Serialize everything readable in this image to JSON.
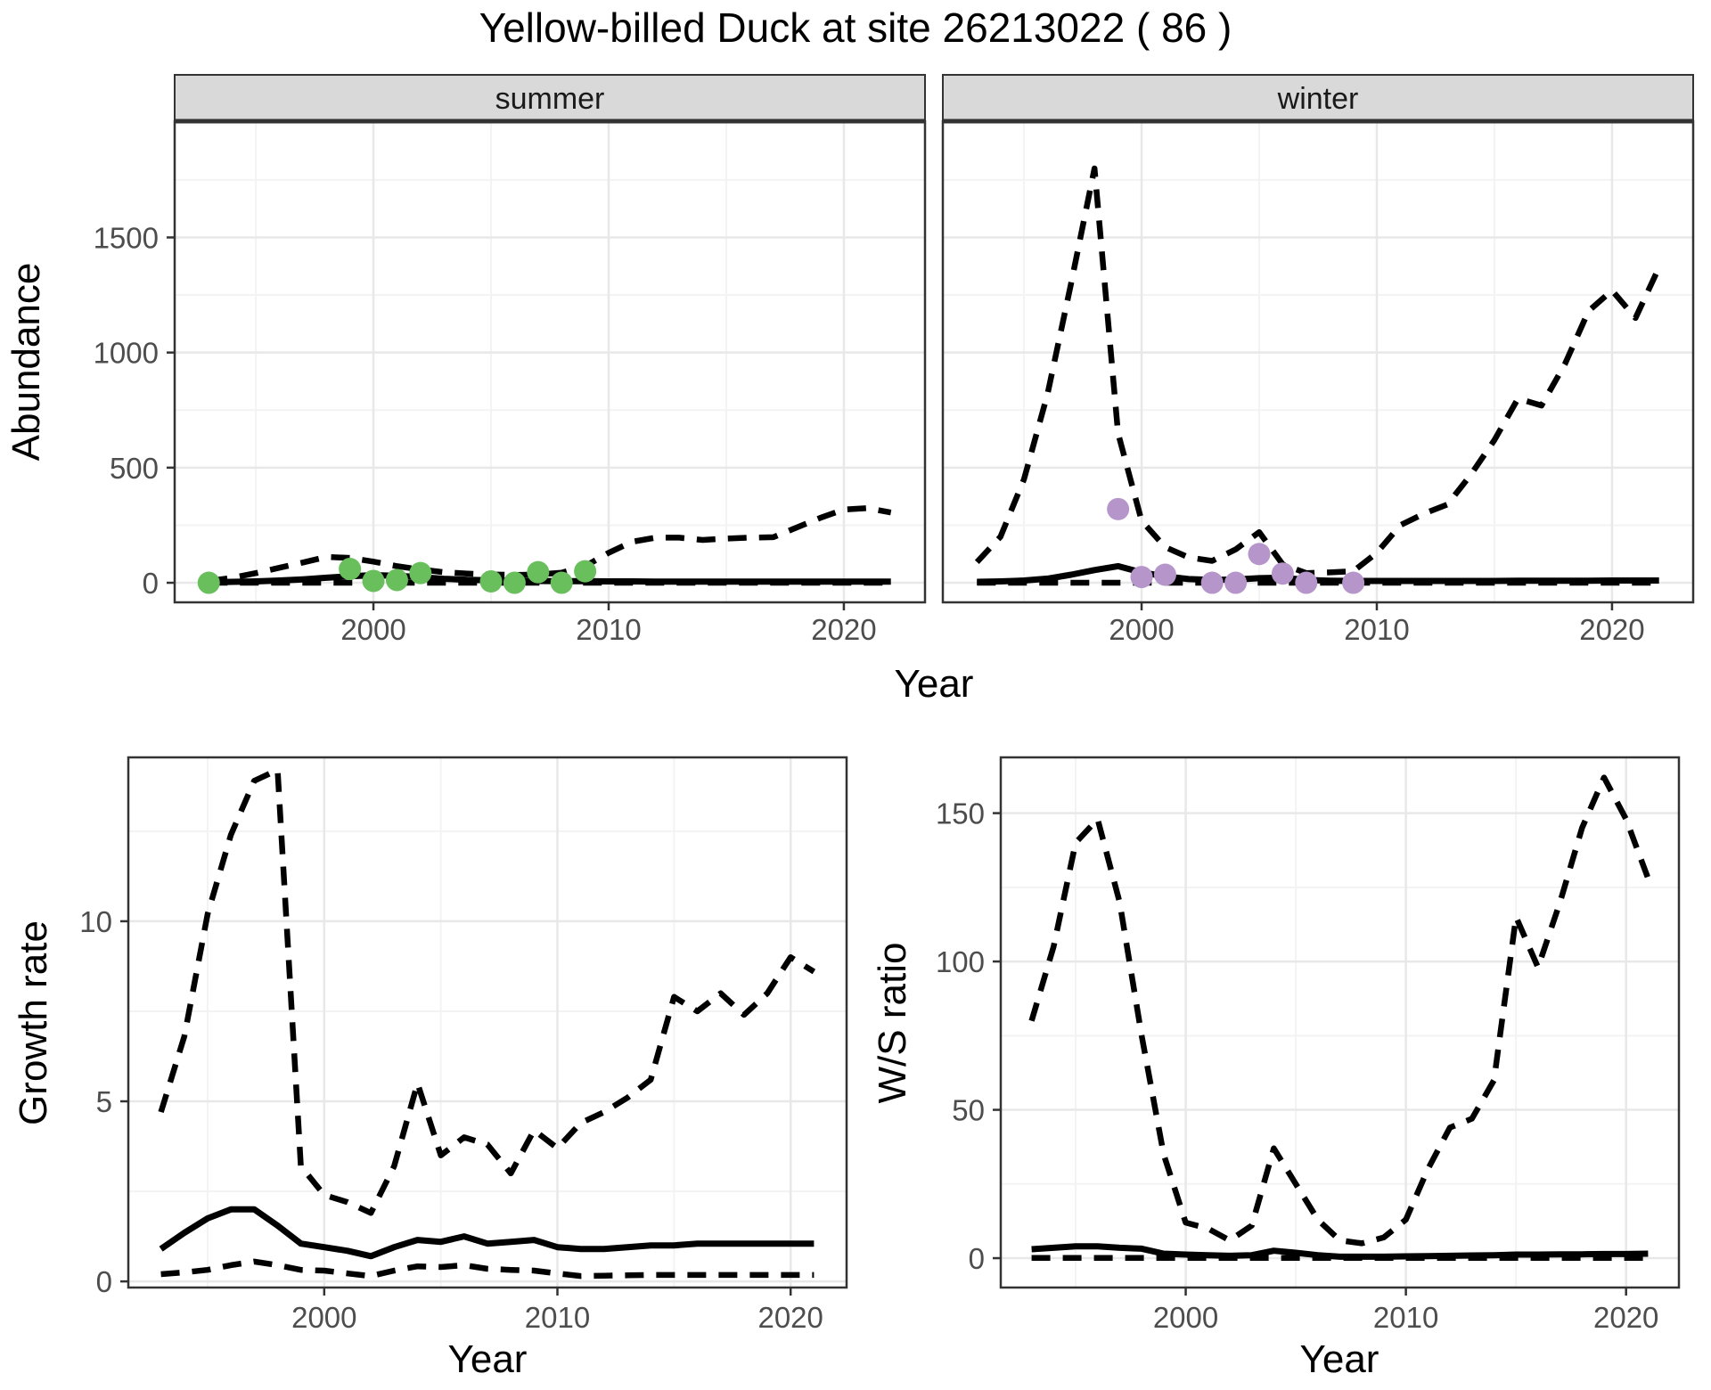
{
  "title": "Yellow-billed Duck at site 26213022 ( 86 )",
  "colors": {
    "summer_points": "#6abf5d",
    "winter_points": "#b695cb",
    "line": "#000000",
    "strip_fill": "#d9d9d9",
    "strip_border": "#333333",
    "panel_border": "#333333",
    "panel_bg": "#ffffff",
    "grid_major": "#e8e8e8",
    "grid_minor": "#f3f3f3",
    "tick_mark": "#333333"
  },
  "chart_data": [
    {
      "id": "abundance",
      "type": "line",
      "title": "Yellow-billed Duck at site 26213022 ( 86 )",
      "xlabel": "Year",
      "ylabel": "Abundance",
      "x_ticks": [
        2000,
        2010,
        2020
      ],
      "y_ticks": [
        0,
        500,
        1000,
        1500
      ],
      "xlim": [
        1991.55,
        2023.45
      ],
      "ylim": [
        -85,
        2005
      ],
      "grid": true,
      "legend": "none",
      "years": [
        1993,
        1994,
        1995,
        1996,
        1997,
        1998,
        1999,
        2000,
        2001,
        2002,
        2003,
        2004,
        2005,
        2006,
        2007,
        2008,
        2009,
        2010,
        2011,
        2012,
        2013,
        2014,
        2015,
        2016,
        2017,
        2018,
        2019,
        2020,
        2021,
        2022
      ],
      "facets": [
        {
          "label": "summer",
          "point_color": "#6abf5d",
          "series": [
            {
              "name": "upper 95% CI",
              "style": "dashed",
              "values": [
                8,
                22,
                42,
                65,
                88,
                112,
                108,
                92,
                72,
                58,
                46,
                40,
                36,
                34,
                36,
                44,
                72,
                130,
                178,
                196,
                196,
                186,
                192,
                196,
                198,
                240,
                282,
                318,
                324,
                305
              ]
            },
            {
              "name": "median estimate",
              "style": "solid",
              "values": [
                2,
                4,
                6,
                10,
                15,
                22,
                28,
                33,
                30,
                24,
                17,
                13,
                11,
                9,
                8,
                7,
                7,
                6,
                6,
                5,
                5,
                5,
                5,
                5,
                5,
                5,
                5,
                5,
                5,
                5
              ]
            },
            {
              "name": "lower 95% CI",
              "style": "dashed",
              "values": [
                0,
                0,
                0,
                0,
                0,
                0,
                0,
                0,
                0,
                0,
                0,
                0,
                0,
                0,
                0,
                0,
                0,
                0,
                0,
                0,
                0,
                0,
                0,
                0,
                0,
                0,
                0,
                0,
                0,
                0
              ]
            }
          ],
          "observed_points": {
            "years": [
              1993,
              1999,
              2000,
              2001,
              2002,
              2005,
              2006,
              2007,
              2008,
              2009
            ],
            "values": [
              0,
              60,
              8,
              12,
              42,
              6,
              0,
              46,
              0,
              50
            ]
          }
        },
        {
          "label": "winter",
          "point_color": "#b695cb",
          "series": [
            {
              "name": "upper 95% CI",
              "style": "dashed",
              "values": [
                90,
                200,
                450,
                820,
                1300,
                1800,
                650,
                270,
                155,
                110,
                95,
                145,
                220,
                80,
                42,
                45,
                50,
                130,
                250,
                300,
                340,
                470,
                620,
                800,
                770,
                950,
                1180,
                1270,
                1150,
                1370
              ]
            },
            {
              "name": "median estimate",
              "style": "solid",
              "values": [
                4,
                6,
                10,
                18,
                35,
                55,
                72,
                45,
                28,
                16,
                12,
                14,
                20,
                22,
                12,
                9,
                8,
                8,
                8,
                8,
                8,
                8,
                8,
                9,
                9,
                9,
                9,
                10,
                10,
                10
              ]
            },
            {
              "name": "lower 95% CI",
              "style": "dashed",
              "values": [
                0,
                0,
                0,
                0,
                0,
                0,
                0,
                0,
                0,
                0,
                0,
                0,
                0,
                0,
                0,
                0,
                0,
                0,
                0,
                0,
                0,
                0,
                0,
                0,
                0,
                0,
                0,
                0,
                0,
                0
              ]
            }
          ],
          "observed_points": {
            "years": [
              1999,
              2000,
              2001,
              2003,
              2004,
              2005,
              2006,
              2007,
              2009
            ],
            "values": [
              320,
              25,
              35,
              0,
              0,
              125,
              40,
              0,
              0
            ]
          }
        }
      ]
    },
    {
      "id": "growth_rate",
      "type": "line",
      "xlabel": "Year",
      "ylabel": "Growth rate",
      "x_ticks": [
        2000,
        2010,
        2020
      ],
      "y_ticks": [
        0,
        5,
        10
      ],
      "xlim": [
        1991.6,
        2022.4
      ],
      "ylim": [
        -0.17,
        14.55
      ],
      "grid": true,
      "legend": "none",
      "years": [
        1993,
        1994,
        1995,
        1996,
        1997,
        1998,
        1999,
        2000,
        2001,
        2002,
        2003,
        2004,
        2005,
        2006,
        2007,
        2008,
        2009,
        2010,
        2011,
        2012,
        2013,
        2014,
        2015,
        2016,
        2017,
        2018,
        2019,
        2020,
        2021
      ],
      "series": [
        {
          "name": "upper 95% CI",
          "style": "dashed",
          "values": [
            4.7,
            6.8,
            10.2,
            12.4,
            13.9,
            14.2,
            3.2,
            2.4,
            2.2,
            1.9,
            3.2,
            5.5,
            3.5,
            4.0,
            3.8,
            3.0,
            4.2,
            3.7,
            4.4,
            4.7,
            5.1,
            5.6,
            7.9,
            7.5,
            8.0,
            7.4,
            8.0,
            9.0,
            8.6
          ]
        },
        {
          "name": "median estimate",
          "style": "solid",
          "values": [
            0.9,
            1.35,
            1.75,
            2.0,
            2.0,
            1.55,
            1.05,
            0.95,
            0.85,
            0.7,
            0.95,
            1.15,
            1.1,
            1.25,
            1.05,
            1.1,
            1.15,
            0.95,
            0.9,
            0.9,
            0.95,
            1.0,
            1.0,
            1.05,
            1.05,
            1.05,
            1.05,
            1.05,
            1.05
          ]
        },
        {
          "name": "lower 95% CI",
          "style": "dashed",
          "values": [
            0.2,
            0.25,
            0.32,
            0.45,
            0.55,
            0.45,
            0.32,
            0.3,
            0.22,
            0.15,
            0.3,
            0.42,
            0.4,
            0.45,
            0.35,
            0.32,
            0.3,
            0.22,
            0.15,
            0.16,
            0.17,
            0.18,
            0.18,
            0.18,
            0.18,
            0.18,
            0.18,
            0.18,
            0.18
          ]
        }
      ]
    },
    {
      "id": "ws_ratio",
      "type": "line",
      "xlabel": "Year",
      "ylabel": "W/S ratio",
      "x_ticks": [
        2000,
        2010,
        2020
      ],
      "y_ticks": [
        0,
        50,
        100,
        150
      ],
      "xlim": [
        1991.6,
        2022.4
      ],
      "ylim": [
        -9.9,
        168.8
      ],
      "grid": true,
      "legend": "none",
      "years": [
        1993,
        1994,
        1995,
        1996,
        1997,
        1998,
        1999,
        2000,
        2001,
        2002,
        2003,
        2004,
        2005,
        2006,
        2007,
        2008,
        2009,
        2010,
        2011,
        2012,
        2013,
        2014,
        2015,
        2016,
        2017,
        2018,
        2019,
        2020,
        2021
      ],
      "series": [
        {
          "name": "upper 95% CI",
          "style": "dashed",
          "values": [
            80,
            105,
            140,
            148,
            120,
            75,
            35,
            12,
            10,
            6,
            11,
            37,
            25,
            13,
            6,
            5,
            7,
            13,
            30,
            44,
            47,
            60,
            115,
            98,
            120,
            145,
            162,
            148,
            128
          ]
        },
        {
          "name": "median estimate",
          "style": "solid",
          "values": [
            3,
            3.5,
            4,
            4,
            3.5,
            3.2,
            1.5,
            1.2,
            1.0,
            0.8,
            1.0,
            2.5,
            1.8,
            1.0,
            0.5,
            0.5,
            0.5,
            0.6,
            0.7,
            0.8,
            0.9,
            1.0,
            1.2,
            1.2,
            1.3,
            1.3,
            1.4,
            1.4,
            1.5
          ]
        },
        {
          "name": "lower 95% CI",
          "style": "dashed",
          "values": [
            0.1,
            0.1,
            0.1,
            0.1,
            0.1,
            0.1,
            0.1,
            0.1,
            0.1,
            0.1,
            0.1,
            0.1,
            0.1,
            0.1,
            0.1,
            0.1,
            0.1,
            0.1,
            0.1,
            0.1,
            0.1,
            0.1,
            0.1,
            0.1,
            0.1,
            0.1,
            0.1,
            0.1,
            0.1
          ]
        }
      ]
    }
  ]
}
